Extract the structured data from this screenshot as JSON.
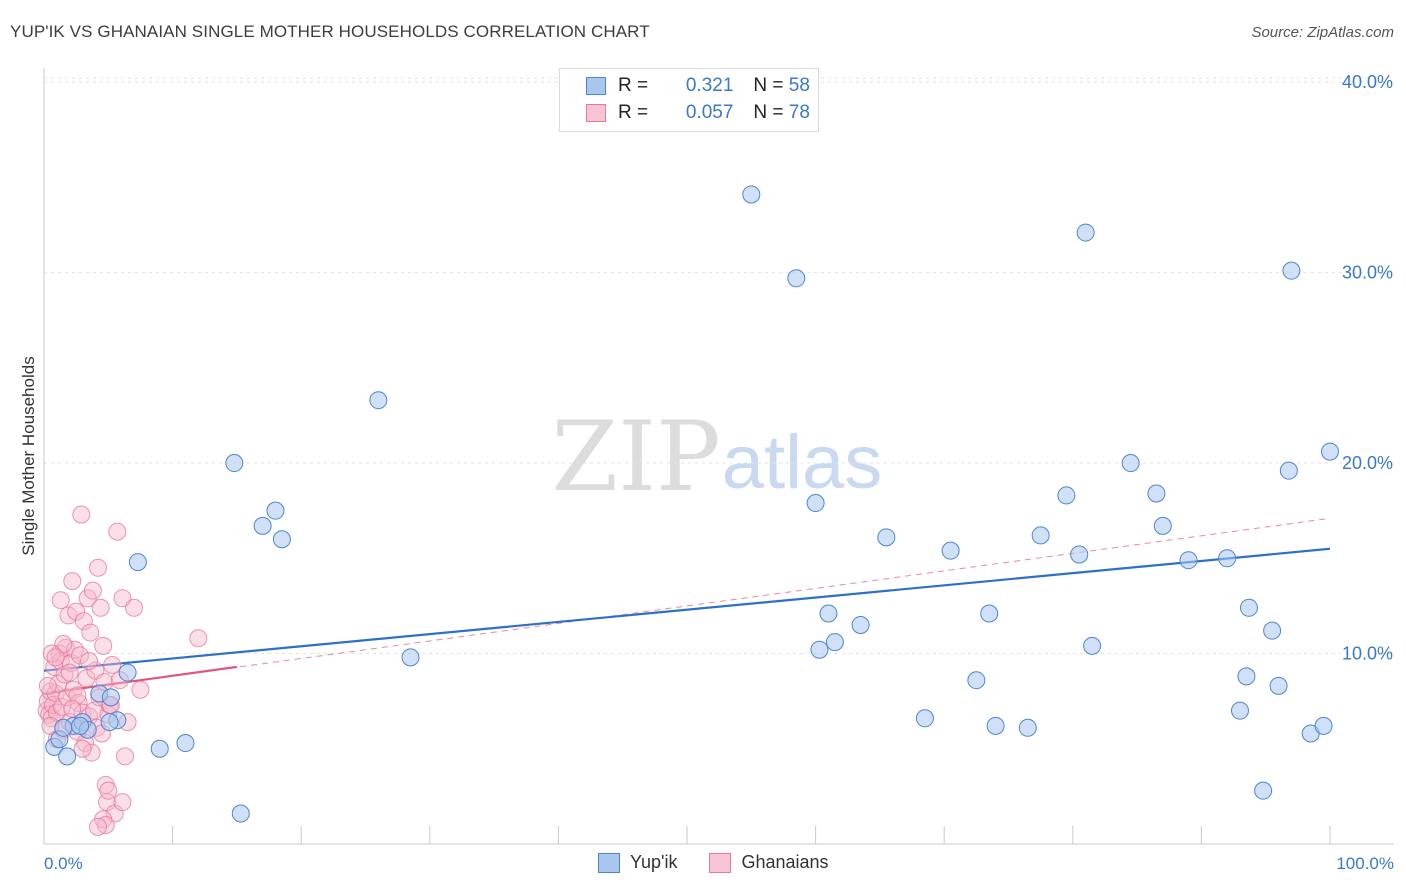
{
  "title": "YUP'IK VS GHANAIAN SINGLE MOTHER HOUSEHOLDS CORRELATION CHART",
  "source": "Source: ZipAtlas.com",
  "watermark": {
    "zip": "ZIP",
    "atlas": "atlas"
  },
  "legend": {
    "r_label": "R =",
    "n_label": "N =",
    "yupik": {
      "r": "0.321",
      "n": "58"
    },
    "ghanaians": {
      "r": "0.057",
      "n": "78"
    }
  },
  "bottom_legend": {
    "yupik": "Yup'ik",
    "ghanaians": "Ghanaians"
  },
  "colors": {
    "blue_fill": "#a9c7ee",
    "blue_stroke": "#4d86d0",
    "blue_line": "#2d6fca",
    "pink_fill": "#f7b8cb",
    "pink_stroke": "#e7799b",
    "pink_line": "#e0557f",
    "axis_label": "#3a78c9"
  },
  "chart_data": {
    "type": "scatter",
    "title": "YUP'IK VS GHANAIAN SINGLE MOTHER HOUSEHOLDS CORRELATION CHART",
    "xlabel": "",
    "ylabel": "Single Mother Households",
    "xlim": [
      0,
      100
    ],
    "ylim": [
      0,
      42
    ],
    "x_tick_labels": {
      "left": "0.0%",
      "right": "100.0%"
    },
    "y_ticks": [
      {
        "value": 10,
        "label": "10.0%"
      },
      {
        "value": 20,
        "label": "20.0%"
      },
      {
        "value": 30,
        "label": "30.0%"
      },
      {
        "value": 40,
        "label": "40.0%"
      }
    ],
    "series": [
      {
        "name": "Yup'ik",
        "r": 0.321,
        "n": 58,
        "trend": {
          "x": [
            0,
            100
          ],
          "y": [
            9.1,
            15.5
          ],
          "style": "solid"
        },
        "points": [
          [
            0.8,
            5.1
          ],
          [
            1.2,
            5.5
          ],
          [
            1.8,
            4.6
          ],
          [
            2.3,
            6.2
          ],
          [
            3.0,
            6.4
          ],
          [
            3.4,
            6.0
          ],
          [
            4.3,
            7.9
          ],
          [
            5.2,
            7.7
          ],
          [
            5.7,
            6.5
          ],
          [
            6.5,
            9.0
          ],
          [
            7.3,
            14.8
          ],
          [
            9.0,
            5.0
          ],
          [
            11.0,
            5.3
          ],
          [
            14.8,
            20.0
          ],
          [
            15.3,
            1.6
          ],
          [
            17.0,
            16.7
          ],
          [
            18.0,
            17.5
          ],
          [
            18.5,
            16.0
          ],
          [
            26.0,
            23.3
          ],
          [
            28.5,
            9.8
          ],
          [
            55.0,
            34.1
          ],
          [
            58.5,
            29.7
          ],
          [
            60.0,
            17.9
          ],
          [
            60.3,
            10.2
          ],
          [
            61.0,
            12.1
          ],
          [
            61.5,
            10.6
          ],
          [
            63.5,
            11.5
          ],
          [
            65.5,
            16.1
          ],
          [
            68.5,
            6.6
          ],
          [
            70.5,
            15.4
          ],
          [
            72.5,
            8.6
          ],
          [
            73.5,
            12.1
          ],
          [
            74.0,
            6.2
          ],
          [
            76.5,
            6.1
          ],
          [
            77.5,
            16.2
          ],
          [
            79.5,
            18.3
          ],
          [
            80.5,
            15.2
          ],
          [
            81.0,
            32.1
          ],
          [
            81.5,
            10.4
          ],
          [
            84.5,
            20.0
          ],
          [
            86.5,
            18.4
          ],
          [
            87.0,
            16.7
          ],
          [
            89.0,
            14.9
          ],
          [
            92.0,
            15.0
          ],
          [
            93.0,
            7.0
          ],
          [
            93.5,
            8.8
          ],
          [
            93.7,
            12.4
          ],
          [
            94.8,
            2.8
          ],
          [
            95.5,
            11.2
          ],
          [
            96.0,
            8.3
          ],
          [
            97.0,
            30.1
          ],
          [
            96.8,
            19.6
          ],
          [
            98.5,
            5.8
          ],
          [
            99.5,
            6.2
          ],
          [
            100.0,
            20.6
          ],
          [
            5.1,
            6.4
          ],
          [
            2.8,
            6.2
          ],
          [
            1.5,
            6.1
          ]
        ]
      },
      {
        "name": "Ghanaians",
        "r": 0.057,
        "n": 78,
        "trend": {
          "x": [
            0,
            15
          ],
          "y": [
            7.9,
            9.3
          ],
          "style": "solid"
        },
        "trend_extended": {
          "x": [
            0,
            100
          ],
          "y": [
            7.9,
            17.1
          ],
          "style": "dashed"
        },
        "points": [
          [
            0.2,
            7.0
          ],
          [
            0.3,
            7.5
          ],
          [
            0.4,
            6.8
          ],
          [
            0.5,
            8.0
          ],
          [
            0.6,
            6.6
          ],
          [
            0.7,
            7.3
          ],
          [
            0.8,
            9.3
          ],
          [
            0.9,
            7.9
          ],
          [
            1.0,
            6.9
          ],
          [
            1.1,
            8.4
          ],
          [
            1.2,
            10.0
          ],
          [
            1.3,
            9.6
          ],
          [
            1.4,
            7.2
          ],
          [
            1.5,
            6.0
          ],
          [
            1.6,
            8.9
          ],
          [
            1.7,
            10.3
          ],
          [
            1.8,
            7.7
          ],
          [
            1.9,
            12.0
          ],
          [
            2.0,
            6.4
          ],
          [
            2.1,
            9.5
          ],
          [
            2.2,
            13.8
          ],
          [
            2.3,
            8.1
          ],
          [
            2.4,
            10.2
          ],
          [
            2.5,
            12.2
          ],
          [
            2.6,
            5.9
          ],
          [
            2.7,
            7.4
          ],
          [
            2.8,
            9.9
          ],
          [
            2.9,
            17.3
          ],
          [
            3.0,
            6.9
          ],
          [
            3.1,
            11.7
          ],
          [
            3.2,
            5.3
          ],
          [
            3.3,
            8.7
          ],
          [
            3.4,
            12.9
          ],
          [
            3.5,
            6.7
          ],
          [
            3.6,
            11.1
          ],
          [
            3.7,
            4.8
          ],
          [
            3.8,
            13.3
          ],
          [
            3.9,
            7.0
          ],
          [
            4.0,
            9.1
          ],
          [
            4.1,
            6.1
          ],
          [
            4.2,
            14.5
          ],
          [
            4.3,
            7.7
          ],
          [
            4.4,
            12.4
          ],
          [
            4.5,
            5.8
          ],
          [
            4.6,
            10.4
          ],
          [
            4.7,
            8.5
          ],
          [
            4.8,
            3.1
          ],
          [
            4.9,
            2.2
          ],
          [
            5.0,
            6.8
          ],
          [
            5.1,
            7.3
          ],
          [
            5.3,
            9.4
          ],
          [
            5.5,
            1.6
          ],
          [
            5.7,
            16.4
          ],
          [
            5.9,
            8.6
          ],
          [
            6.1,
            12.9
          ],
          [
            6.3,
            4.6
          ],
          [
            6.5,
            6.4
          ],
          [
            7.0,
            12.4
          ],
          [
            7.5,
            8.1
          ],
          [
            4.6,
            1.3
          ],
          [
            4.8,
            1.0
          ],
          [
            5.0,
            2.8
          ],
          [
            6.1,
            2.2
          ],
          [
            4.2,
            0.9
          ],
          [
            1.5,
            10.5
          ],
          [
            2.0,
            9.0
          ],
          [
            0.5,
            6.2
          ],
          [
            1.0,
            5.5
          ],
          [
            1.3,
            12.8
          ],
          [
            2.6,
            7.8
          ],
          [
            3.0,
            5.0
          ],
          [
            3.5,
            9.6
          ],
          [
            12.0,
            10.8
          ],
          [
            0.3,
            8.3
          ],
          [
            0.6,
            10.0
          ],
          [
            0.9,
            9.8
          ],
          [
            2.2,
            7.1
          ],
          [
            5.2,
            7.3
          ]
        ]
      }
    ]
  }
}
